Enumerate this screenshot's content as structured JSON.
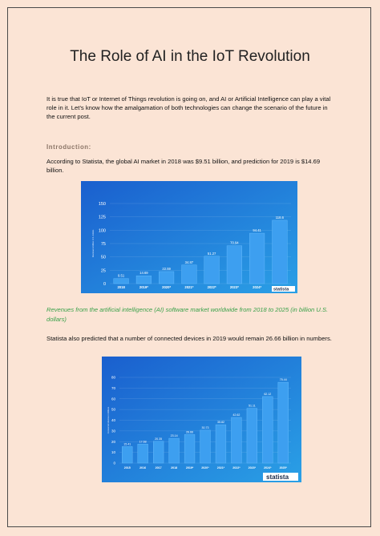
{
  "title": "The Role of AI in the IoT Revolution",
  "intro_paragraph": "It is true that IoT or Internet of Things revolution is going on, and AI or Artificial Intelligence can play a vital role in it. Let’s know how the amalgamation of both technologies can change the scenario of the future in the current post.",
  "section_heading": "Introduction:",
  "paragraph_2": "According to Statista, the global AI market in 2018 was $9.51 billion, and prediction for 2019 is $14.69 billion.",
  "caption": "Revenues from the artificial intelligence (AI) software market worldwide from 2018 to 2025 (in billion U.S. dollars)",
  "paragraph_3": "Statista also predicted that a number of connected devices in 2019 would remain 26.66 billion in numbers.",
  "chart_data": [
    {
      "type": "bar",
      "y_label": "Revenue in billion U.S. dollars",
      "logo": "statista",
      "categories": [
        "2018",
        "2019*",
        "2020*",
        "2021*",
        "2022*",
        "2023*",
        "2024*",
        "2025*"
      ],
      "values": [
        9.51,
        14.69,
        22.59,
        34.87,
        51.27,
        70.94,
        94.41,
        118.6
      ],
      "color": "#3d9ff0",
      "ylim": [
        0,
        150
      ],
      "yticks": [
        0,
        25,
        50,
        75,
        100,
        125,
        150
      ],
      "grid": true
    },
    {
      "type": "bar",
      "y_label": "Connected devices in billions",
      "logo": "statista",
      "categories": [
        "2015",
        "2016",
        "2017",
        "2018",
        "2019*",
        "2020*",
        "2021*",
        "2022*",
        "2023*",
        "2024*",
        "2025*"
      ],
      "values": [
        15.41,
        17.68,
        20.35,
        23.14,
        26.66,
        30.73,
        35.82,
        42.62,
        51.11,
        62.12,
        75.44
      ],
      "color": "#3d9ff0",
      "ylim": [
        0,
        80
      ],
      "yticks": [
        0,
        10,
        20,
        30,
        40,
        50,
        60,
        70,
        80
      ],
      "grid": true
    }
  ]
}
